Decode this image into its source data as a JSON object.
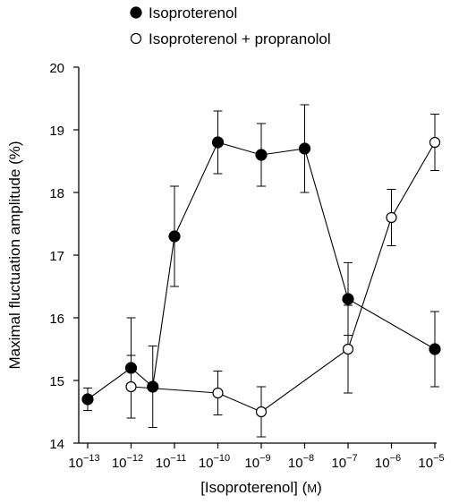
{
  "chart_data": {
    "type": "scatter",
    "xlabel": "[Isoproterenol] (M)",
    "xlabel_main": "[Isoproterenol] (",
    "xlabel_unit": "M",
    "xlabel_close": ")",
    "ylabel": "Maximal fluctuation amplitude (%)",
    "x_scale": "log",
    "x_tick_exponents": [
      -13,
      -12,
      -11,
      -10,
      -9,
      -8,
      -7,
      -6,
      -5
    ],
    "x_tick_base": "10",
    "y_ticks": [
      14,
      15,
      16,
      17,
      18,
      19,
      20
    ],
    "ylim": [
      14,
      20
    ],
    "legend_position": "top-left",
    "series": [
      {
        "name": "Isoproterenol",
        "marker": "filled-circle",
        "color": "#000000",
        "points": [
          {
            "x": -13,
            "y": 14.7,
            "err": 0.18
          },
          {
            "x": -12,
            "y": 15.2,
            "err": 0.8
          },
          {
            "x": -11.5,
            "y": 14.9,
            "err": 0.65
          },
          {
            "x": -11,
            "y": 17.3,
            "err": 0.8
          },
          {
            "x": -10,
            "y": 18.8,
            "err": 0.5
          },
          {
            "x": -9,
            "y": 18.6,
            "err": 0.5
          },
          {
            "x": -8,
            "y": 18.7,
            "err": 0.7
          },
          {
            "x": -7,
            "y": 16.3,
            "err": 0.58
          },
          {
            "x": -5,
            "y": 15.5,
            "err": 0.6
          }
        ]
      },
      {
        "name": "Isoproterenol + propranolol",
        "marker": "open-circle",
        "color": "#000000",
        "points": [
          {
            "x": -12,
            "y": 14.9,
            "err": 0.5
          },
          {
            "x": -10,
            "y": 14.8,
            "err": 0.35
          },
          {
            "x": -9,
            "y": 14.5,
            "err": 0.4
          },
          {
            "x": -7,
            "y": 15.5,
            "err": 0.7
          },
          {
            "x": -6,
            "y": 17.6,
            "err": 0.45
          },
          {
            "x": -5,
            "y": 18.8,
            "err": 0.45
          }
        ]
      }
    ]
  }
}
